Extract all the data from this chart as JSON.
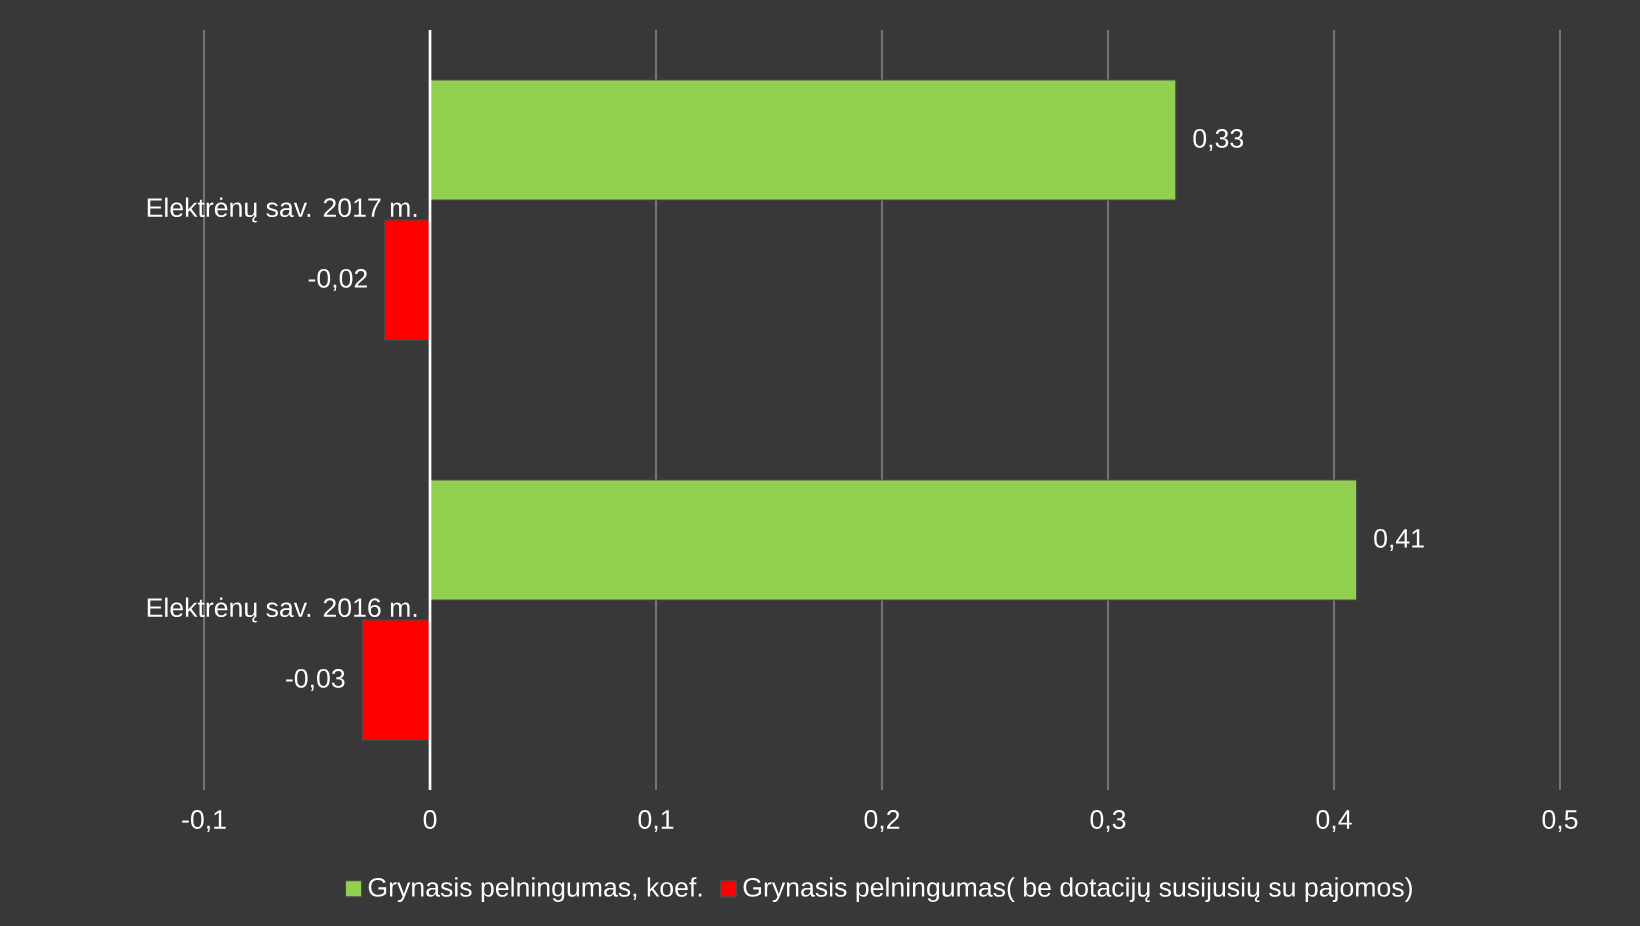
{
  "chart_data": {
    "type": "bar",
    "orientation": "horizontal",
    "categories": [
      "Elektrėnų sav. 2017 m.",
      "Elektrėnų sav. 2016 m."
    ],
    "series": [
      {
        "name": "Grynasis pelningumas, koef.",
        "color": "#92d050",
        "values": [
          0.33,
          0.41
        ],
        "value_labels": [
          "0,33",
          "0,41"
        ]
      },
      {
        "name": "Grynasis pelningumas( be dotacijų susijusių su pajomos)",
        "color": "#ff0000",
        "values": [
          -0.02,
          -0.03
        ],
        "value_labels": [
          "-0,02",
          "-0,03"
        ]
      }
    ],
    "xlim": [
      -0.1,
      0.5
    ],
    "xticks": [
      {
        "value": -0.1,
        "label": "-0,1"
      },
      {
        "value": 0,
        "label": "0"
      },
      {
        "value": 0.1,
        "label": "0,1"
      },
      {
        "value": 0.2,
        "label": "0,2"
      },
      {
        "value": 0.3,
        "label": "0,3"
      },
      {
        "value": 0.4,
        "label": "0,4"
      },
      {
        "value": 0.5,
        "label": "0,5"
      }
    ],
    "grid": "x",
    "legend": "bottom"
  }
}
